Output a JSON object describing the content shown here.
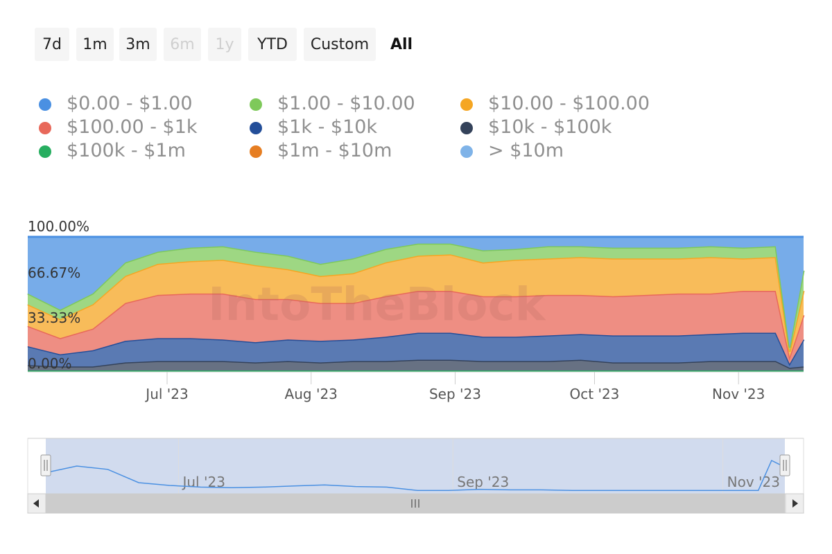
{
  "range_selector": {
    "buttons": [
      {
        "label": "7d",
        "state": "normal"
      },
      {
        "label": "1m",
        "state": "normal"
      },
      {
        "label": "3m",
        "state": "normal"
      },
      {
        "label": "6m",
        "state": "disabled"
      },
      {
        "label": "1y",
        "state": "disabled"
      },
      {
        "label": "YTD",
        "state": "normal"
      },
      {
        "label": "Custom",
        "state": "normal"
      },
      {
        "label": "All",
        "state": "active"
      }
    ]
  },
  "legend": {
    "items": [
      {
        "label": "$0.00 - $1.00",
        "color": "#4a90e2"
      },
      {
        "label": "$1.00 - $10.00",
        "color": "#7ec95a"
      },
      {
        "label": "$10.00 - $100.00",
        "color": "#f5a623"
      },
      {
        "label": "$100.00 - $1k",
        "color": "#e8685a"
      },
      {
        "label": "$1k - $10k",
        "color": "#234e99"
      },
      {
        "label": "$10k - $100k",
        "color": "#34425a"
      },
      {
        "label": "$100k - $1m",
        "color": "#27ae60"
      },
      {
        "label": "$1m - $10m",
        "color": "#e67e22"
      },
      {
        "label": "> $10m",
        "color": "#7fb3e8"
      }
    ]
  },
  "watermark": "IntoTheBlock",
  "chart_data": {
    "type": "area",
    "stacked": true,
    "percent": true,
    "x_start": "2023-06-01",
    "x_end": "2023-11-15",
    "ylim": [
      0,
      100
    ],
    "y_ticks": [
      "0.00%",
      "33.33%",
      "66.67%",
      "100.00%"
    ],
    "x_ticks": [
      {
        "label": "Jul '23",
        "date": "2023-07-01"
      },
      {
        "label": "Aug '23",
        "date": "2023-08-01"
      },
      {
        "label": "Sep '23",
        "date": "2023-09-01"
      },
      {
        "label": "Oct '23",
        "date": "2023-10-01"
      },
      {
        "label": "Nov '23",
        "date": "2023-11-01"
      }
    ],
    "x": [
      "2023-06-01",
      "2023-06-08",
      "2023-06-15",
      "2023-06-22",
      "2023-06-29",
      "2023-07-06",
      "2023-07-13",
      "2023-07-20",
      "2023-07-27",
      "2023-08-03",
      "2023-08-10",
      "2023-08-17",
      "2023-08-24",
      "2023-08-31",
      "2023-09-07",
      "2023-09-14",
      "2023-09-21",
      "2023-09-28",
      "2023-10-05",
      "2023-10-12",
      "2023-10-19",
      "2023-10-26",
      "2023-11-02",
      "2023-11-09",
      "2023-11-12",
      "2023-11-15"
    ],
    "series": [
      {
        "name": "$100k - $1m",
        "values": [
          1,
          1,
          1,
          1,
          1,
          1,
          1,
          1,
          1,
          1,
          1,
          1,
          1,
          1,
          1,
          1,
          1,
          1,
          1,
          1,
          1,
          1,
          1,
          1,
          1,
          1
        ]
      },
      {
        "name": "$10k - $100k",
        "values": [
          4,
          3,
          3,
          6,
          7,
          7,
          7,
          6,
          7,
          6,
          7,
          7,
          8,
          8,
          7,
          7,
          7,
          8,
          6,
          6,
          6,
          7,
          7,
          7,
          2,
          3
        ]
      },
      {
        "name": "$1k - $10k",
        "values": [
          14,
          9,
          12,
          16,
          17,
          17,
          16,
          15,
          16,
          16,
          16,
          18,
          20,
          20,
          18,
          18,
          19,
          19,
          20,
          20,
          20,
          20,
          21,
          21,
          3,
          20
        ]
      },
      {
        "name": "$100.00 - $1k",
        "values": [
          15,
          12,
          16,
          28,
          32,
          33,
          34,
          32,
          30,
          28,
          27,
          30,
          31,
          31,
          30,
          30,
          30,
          29,
          29,
          30,
          31,
          30,
          31,
          31,
          5,
          18
        ]
      },
      {
        "name": "$10.00 - $100.00",
        "values": [
          16,
          14,
          18,
          20,
          23,
          24,
          25,
          25,
          22,
          20,
          22,
          25,
          26,
          27,
          25,
          27,
          27,
          28,
          28,
          27,
          26,
          27,
          24,
          25,
          4,
          18
        ]
      },
      {
        "name": "$1.00 - $10.00",
        "values": [
          8,
          7,
          8,
          10,
          9,
          10,
          10,
          10,
          10,
          9,
          11,
          10,
          9,
          8,
          9,
          8,
          9,
          8,
          8,
          8,
          8,
          8,
          8,
          8,
          3,
          15
        ]
      },
      {
        "name": "$0.00 - $1.00",
        "values": [
          42,
          54,
          42,
          19,
          11,
          8,
          7,
          11,
          14,
          20,
          16,
          9,
          5,
          5,
          10,
          9,
          7,
          7,
          8,
          8,
          8,
          7,
          8,
          7,
          82,
          25
        ]
      }
    ],
    "navigator_series": [
      38,
      50,
      44,
      20,
      15,
      12,
      11,
      12,
      14,
      16,
      13,
      12,
      6,
      6,
      8,
      7,
      7,
      6,
      6,
      6,
      6,
      6,
      6,
      6,
      60,
      48
    ]
  }
}
